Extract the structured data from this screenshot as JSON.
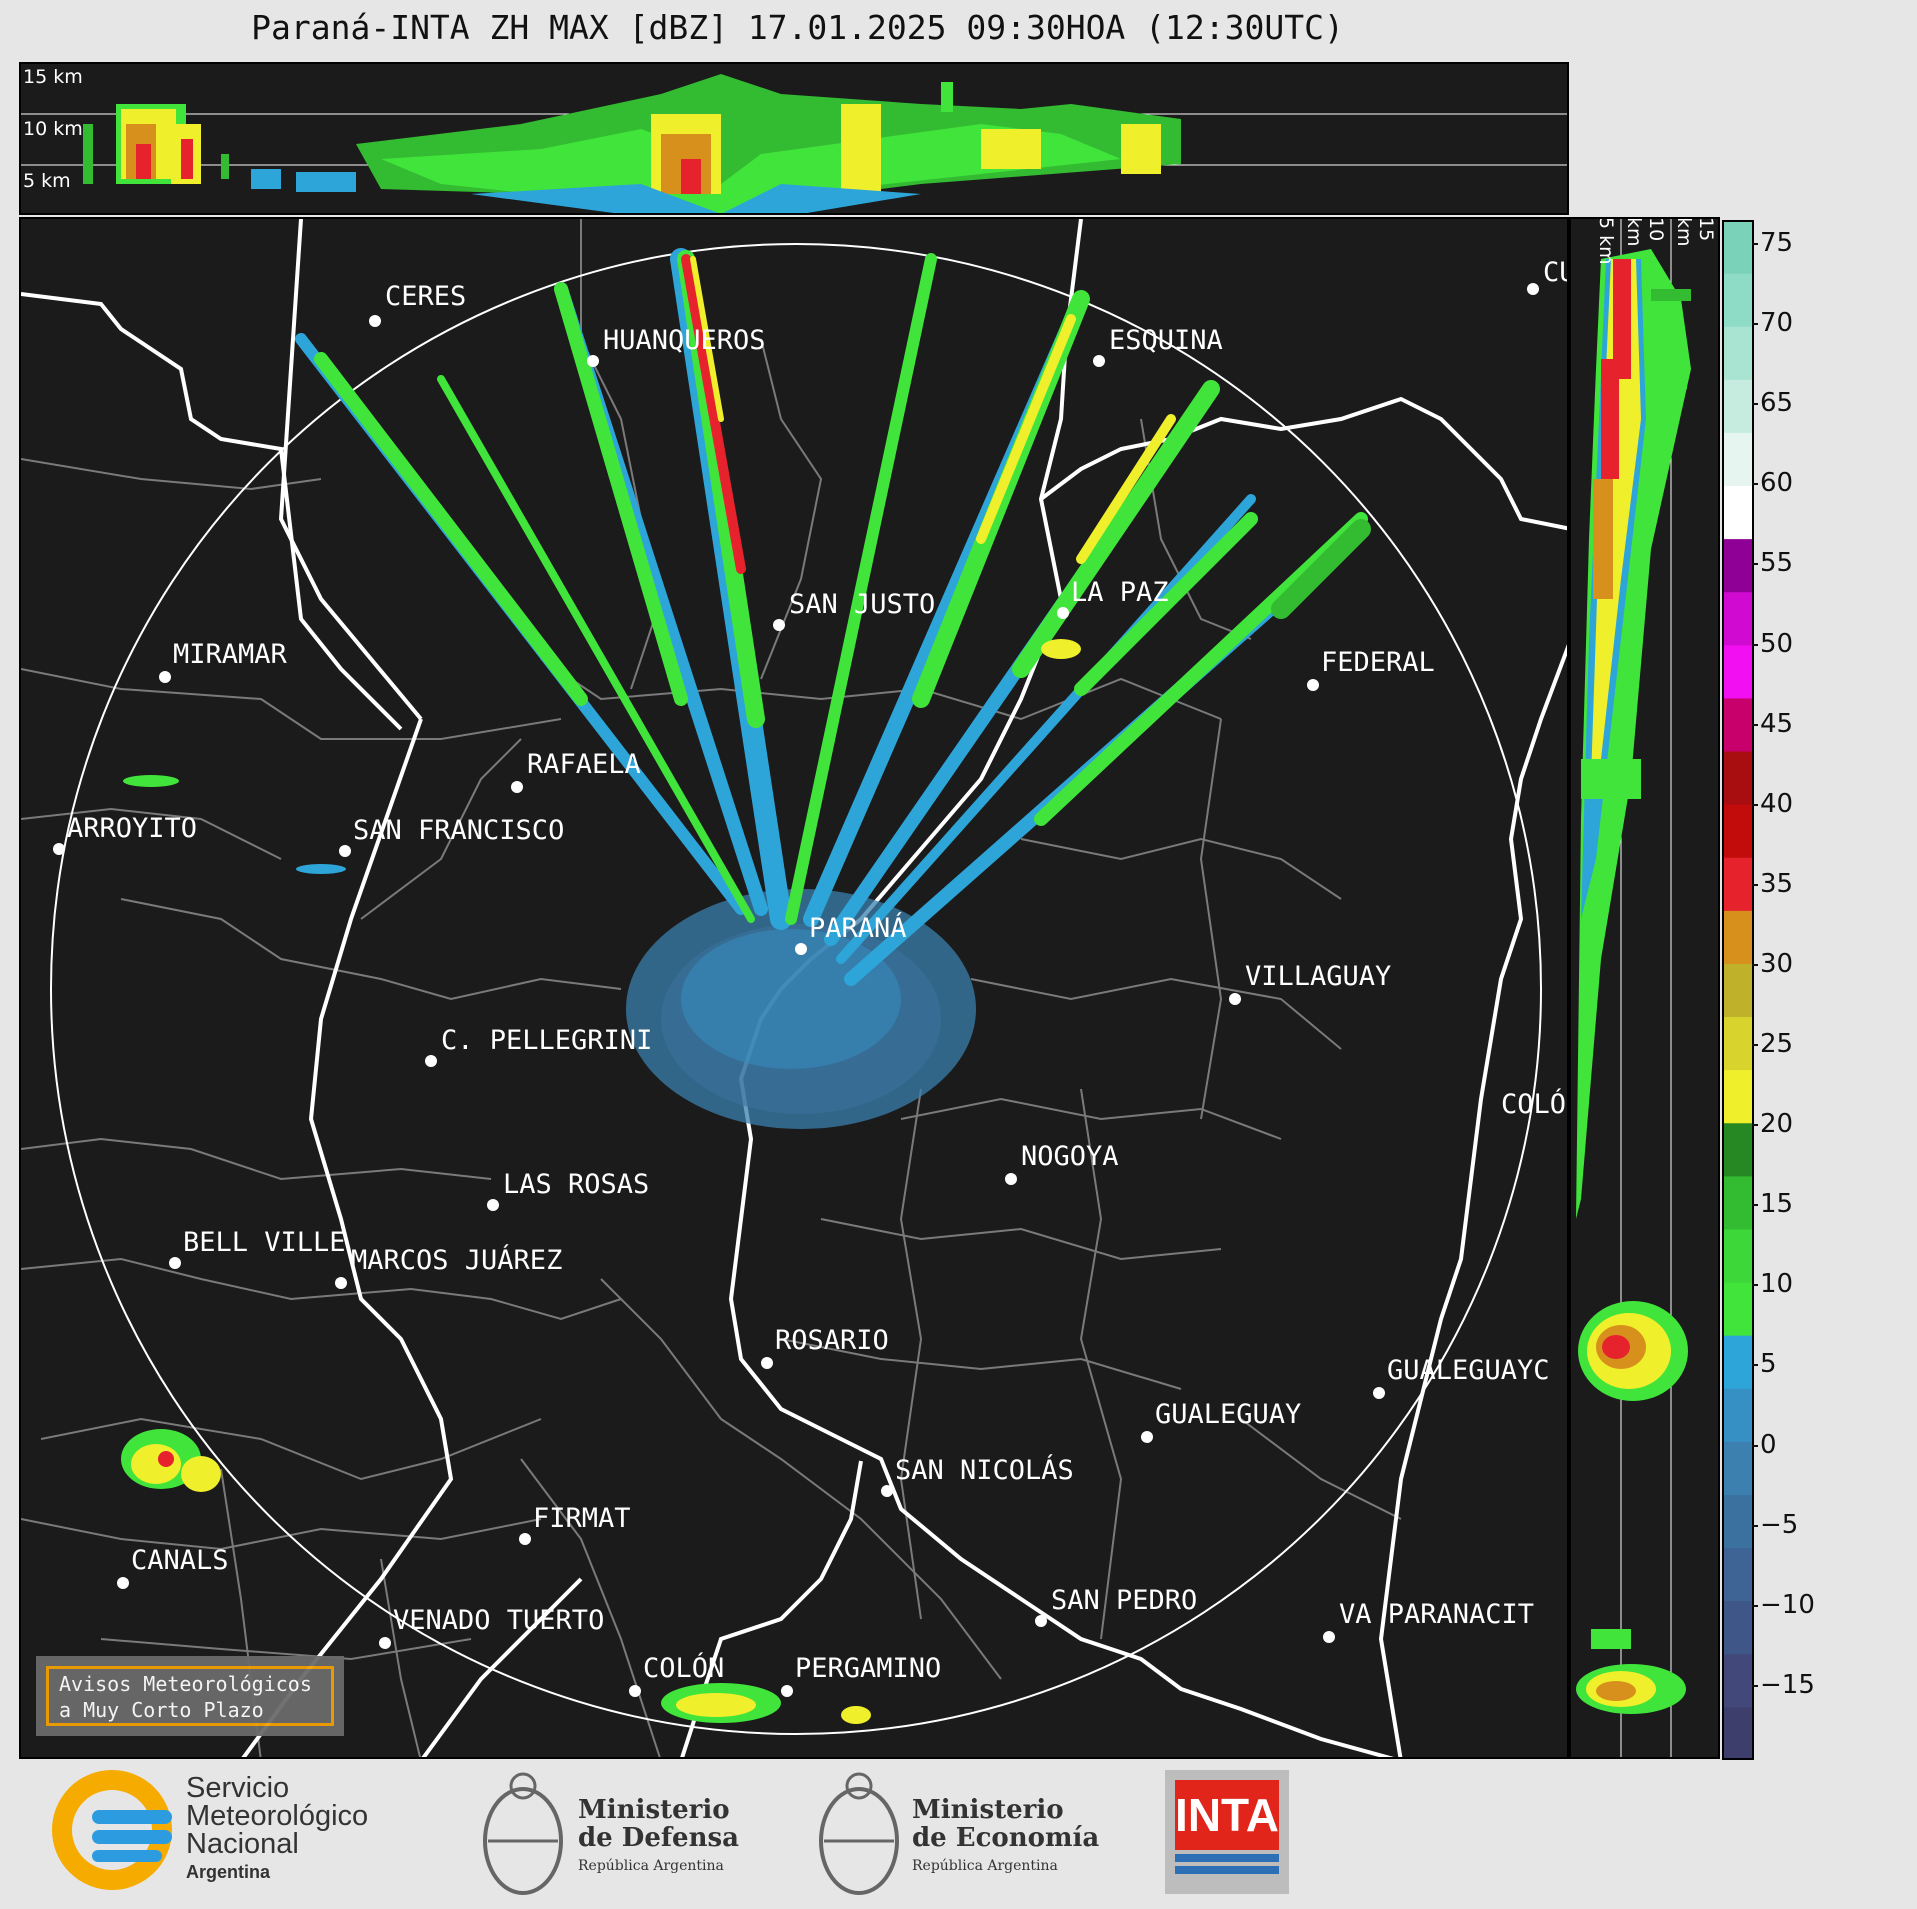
{
  "title": "Paraná-INTA ZH MAX [dBZ] 17.01.2025 09:30HOA (12:30UTC)",
  "top_panel": {
    "height_labels": [
      "15 km",
      "10 km",
      "5 km"
    ]
  },
  "side_panel": {
    "height_labels": [
      "5 km",
      "10 km",
      "15 km"
    ]
  },
  "colorbar": {
    "ticks": [
      "75",
      "70",
      "65",
      "60",
      "55",
      "50",
      "45",
      "40",
      "35",
      "30",
      "25",
      "20",
      "15",
      "10",
      "5",
      "0",
      "−5",
      "−10",
      "−15"
    ],
    "scale_colors": [
      "#3d3e6b",
      "#42497a",
      "#3f5688",
      "#3d6494",
      "#3a719e",
      "#3b80ae",
      "#3690c4",
      "#2ea5d8",
      "#41e43b",
      "#3dd73a",
      "#33bb31",
      "#258823",
      "#f0ef2c",
      "#d8d42d",
      "#bfb22a",
      "#d7901c",
      "#e6222d",
      "#c20b0b",
      "#a80e10",
      "#c8006b",
      "#f20ff2",
      "#d10ad1",
      "#8e0096",
      "#ffffff",
      "#e6f5f0",
      "#c6ece0",
      "#a9e4d3",
      "#8fdcc6",
      "#7ad3b8"
    ]
  },
  "cities": [
    {
      "name": "CERES"
    },
    {
      "name": "HUANQUEROS"
    },
    {
      "name": "ESQUINA"
    },
    {
      "name": "CU"
    },
    {
      "name": "SAN JUSTO"
    },
    {
      "name": "LA PAZ"
    },
    {
      "name": "MIRAMAR"
    },
    {
      "name": "FEDERAL"
    },
    {
      "name": "RAFAELA"
    },
    {
      "name": "ARROYITO"
    },
    {
      "name": "SAN FRANCISCO"
    },
    {
      "name": "PARANÁ"
    },
    {
      "name": "VILLAGUAY"
    },
    {
      "name": "C. PELLEGRINI"
    },
    {
      "name": "COLÓ"
    },
    {
      "name": "NOGOYA"
    },
    {
      "name": "LAS ROSAS"
    },
    {
      "name": "BELL VILLE"
    },
    {
      "name": "MARCOS JUÁREZ"
    },
    {
      "name": "ROSARIO"
    },
    {
      "name": "GUALEGUAYC"
    },
    {
      "name": "GUALEGUAY"
    },
    {
      "name": "SAN NICOLÁS"
    },
    {
      "name": "FIRMAT"
    },
    {
      "name": "CANALS"
    },
    {
      "name": "SAN PEDRO"
    },
    {
      "name": "VA PARANACIT"
    },
    {
      "name": "VENADO TUERTO"
    },
    {
      "name": "COLÓN"
    },
    {
      "name": "PERGAMINO"
    }
  ],
  "avisos": {
    "line1": "Avisos Meteorológicos",
    "line2": "a Muy Corto Plazo"
  },
  "logos": {
    "smn": {
      "l1": "Servicio",
      "l2": "Meteorológico",
      "l3": "Nacional",
      "l4": "Argentina"
    },
    "defensa": {
      "l1": "Ministerio",
      "l2": "de Defensa",
      "l3": "República Argentina"
    },
    "economia": {
      "l1": "Ministerio",
      "l2": "de Economía",
      "l3": "República Argentina"
    },
    "inta": {
      "text": "INTA"
    }
  }
}
